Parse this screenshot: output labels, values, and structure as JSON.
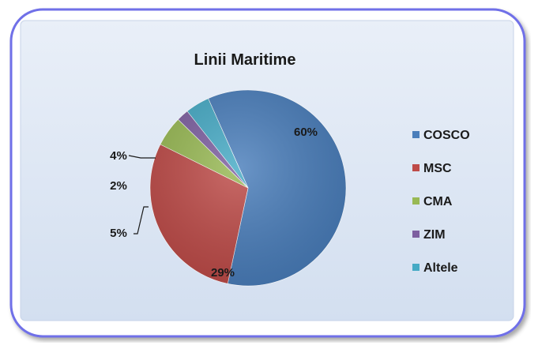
{
  "chart_data": {
    "type": "pie",
    "title": "Linii Maritime",
    "categories": [
      "COSCO",
      "MSC",
      "CMA",
      "ZIM",
      "Altele"
    ],
    "values": [
      60,
      29,
      5,
      2,
      4
    ],
    "labels": [
      "60%",
      "29%",
      "5%",
      "2%",
      "4%"
    ],
    "colors": [
      "#4a7ebb",
      "#be4b48",
      "#98b954",
      "#7d5fa0",
      "#46aac5"
    ],
    "legend_position": "right",
    "start_angle_deg": -114,
    "direction": "clockwise"
  },
  "frame": {
    "border_color": "#6f6fe8",
    "inner_background": "#dde7f4"
  }
}
